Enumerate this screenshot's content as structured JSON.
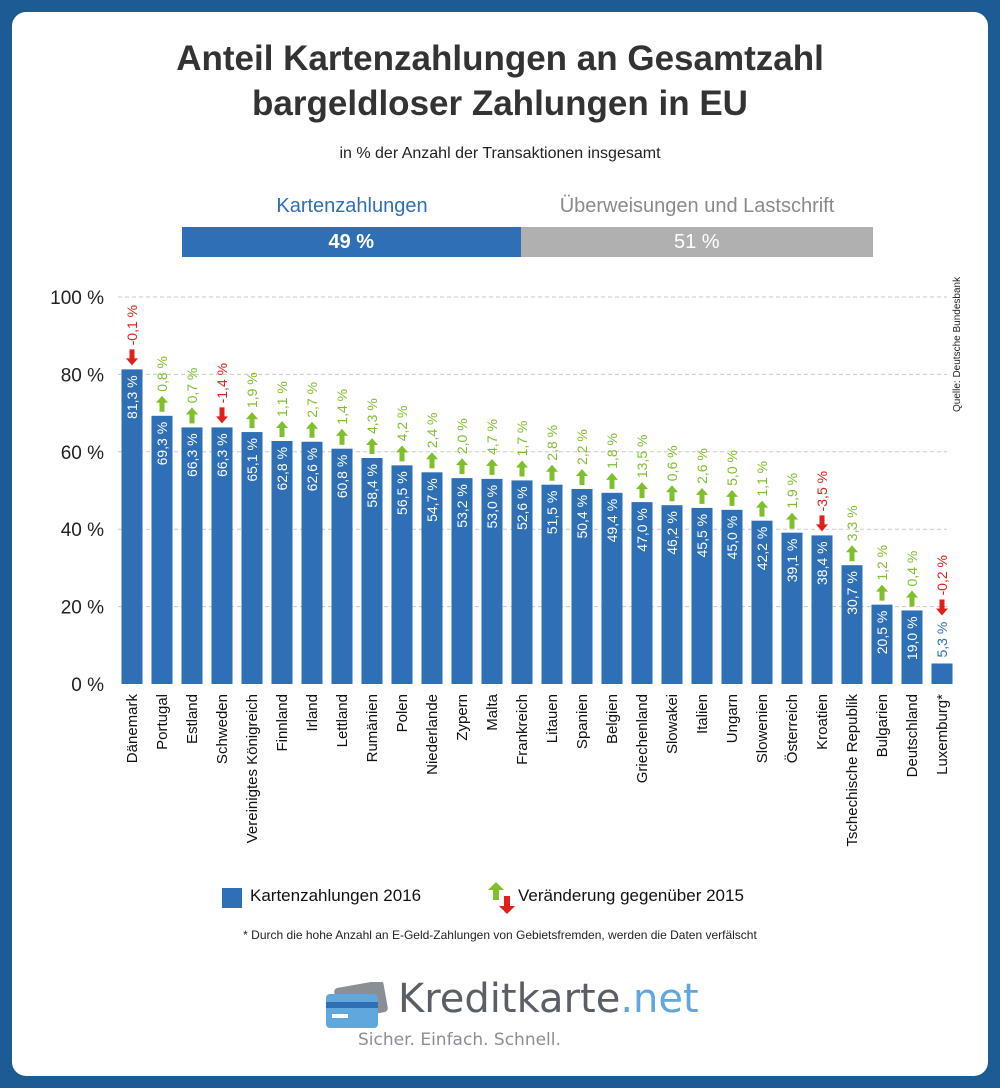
{
  "header": {
    "title_line1": "Anteil Kartenzahlungen an Gesamtzahl",
    "title_line2": "bargeldloser Zahlungen in EU",
    "subtitle": "in % der Anzahl der Transaktionen insgesamt"
  },
  "split": {
    "cards_label": "Kartenzahlungen",
    "cards_value": "49 %",
    "cards_share": 49,
    "transfer_label": "Überweisungen und Lastschrift",
    "transfer_value": "51 %",
    "transfer_share": 51
  },
  "source": "Quelle:  Deutsche Bundesbank",
  "colors": {
    "bar": "#2e6fb5",
    "up": "#7fbf2a",
    "down": "#e0201b",
    "grey": "#b0b0b0"
  },
  "chart_data": {
    "type": "bar",
    "ylim": [
      0,
      100
    ],
    "y_ticks": [
      "0 %",
      "20 %",
      "40 %",
      "60 %",
      "80 %",
      "100 %"
    ],
    "y_tick_values": [
      0,
      20,
      40,
      60,
      80,
      100
    ],
    "grid": "dashed horizontal",
    "categories": [
      "Dänemark",
      "Portugal",
      "Estland",
      "Schweden",
      "Vereinigtes Königreich",
      "Finnland",
      "Irland",
      "Lettland",
      "Rumänien",
      "Polen",
      "Niederlande",
      "Zypern",
      "Malta",
      "Frankreich",
      "Litauen",
      "Spanien",
      "Belgien",
      "Griechenland",
      "Slowakei",
      "Italien",
      "Ungarn",
      "Slowenien",
      "Österreich",
      "Kroatien",
      "Tschechische Republik",
      "Bulgarien",
      "Deutschland",
      "Luxemburg*"
    ],
    "series": [
      {
        "name": "Kartenzahlungen 2016",
        "values": [
          81.3,
          69.3,
          66.3,
          66.3,
          65.1,
          62.8,
          62.6,
          60.8,
          58.4,
          56.5,
          54.7,
          53.2,
          53.0,
          52.6,
          51.5,
          50.4,
          49.4,
          47.0,
          46.2,
          45.5,
          45.0,
          42.2,
          39.1,
          38.4,
          30.7,
          20.5,
          19.0,
          5.3
        ],
        "labels": [
          "81,3 %",
          "69,3 %",
          "66,3 %",
          "66,3 %",
          "65,1 %",
          "62,8 %",
          "62,6 %",
          "60,8 %",
          "58,4 %",
          "56,5 %",
          "54,7 %",
          "53,2 %",
          "53,0 %",
          "52,6 %",
          "51,5 %",
          "50,4 %",
          "49,4 %",
          "47,0 %",
          "46,2 %",
          "45,5 %",
          "45,0 %",
          "42,2 %",
          "39,1 %",
          "38,4 %",
          "30,7 %",
          "20,5 %",
          "19,0 %",
          "5,3 %"
        ]
      },
      {
        "name": "Veränderung gegenüber 2015",
        "values": [
          -0.1,
          0.8,
          0.7,
          -1.4,
          1.9,
          1.1,
          2.7,
          1.4,
          4.3,
          4.2,
          2.4,
          2.0,
          4.7,
          1.7,
          2.8,
          2.2,
          1.8,
          13.5,
          0.6,
          2.6,
          5.0,
          1.1,
          1.9,
          -3.5,
          3.3,
          1.2,
          0.4,
          -0.2
        ],
        "labels": [
          "-0,1 %",
          "0,8 %",
          "0,7 %",
          "-1,4 %",
          "1,9 %",
          "1,1 %",
          "2,7 %",
          "1,4 %",
          "4,3 %",
          "4,2 %",
          "2,4 %",
          "2,0 %",
          "4,7 %",
          "1,7 %",
          "2,8 %",
          "2,2 %",
          "1,8 %",
          "13,5 %",
          "0,6 %",
          "2,6 %",
          "5,0 %",
          "1,1 %",
          "1,9 %",
          "-3,5 %",
          "3,3 %",
          "1,2 %",
          "0,4 %",
          "-0,2 %"
        ]
      }
    ]
  },
  "legend": {
    "bars_label": "Kartenzahlungen 2016",
    "change_label": "Veränderung gegenüber 2015"
  },
  "footnote": "* Durch die hohe Anzahl an E-Geld-Zahlungen von Gebietsfremden, werden die Daten verfälscht",
  "logo": {
    "name": "Kreditkarte",
    "suffix": ".net",
    "tagline": "Sicher. Einfach. Schnell.",
    "icon": "credit-card-icon"
  }
}
